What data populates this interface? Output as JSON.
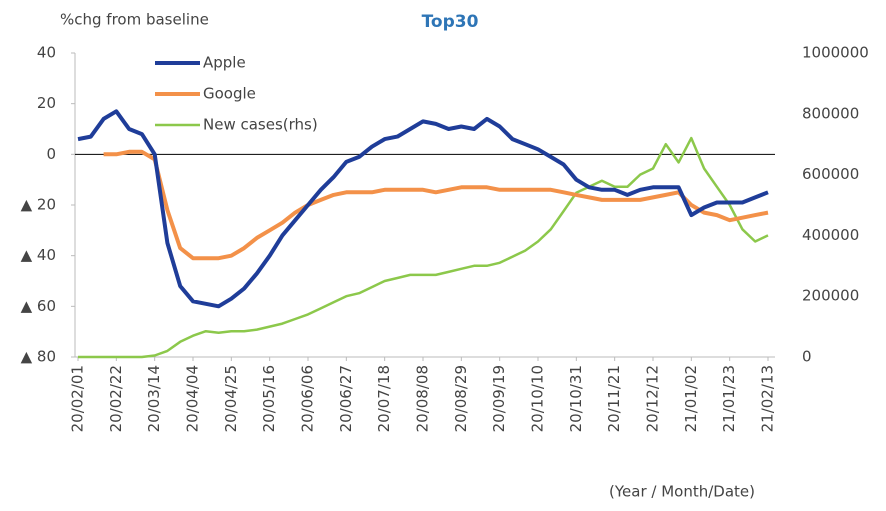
{
  "chart_data": {
    "type": "line",
    "title": "Top30",
    "y_label": "%chg from baseline",
    "x_label": "(Year / Month/Date)",
    "categories": [
      "20/02/01",
      null,
      null,
      "20/02/22",
      null,
      null,
      "20/03/14",
      null,
      null,
      "20/04/04",
      null,
      null,
      "20/04/25",
      null,
      null,
      "20/05/16",
      null,
      null,
      "20/06/06",
      null,
      null,
      "20/06/27",
      null,
      null,
      "20/07/18",
      null,
      null,
      "20/08/08",
      null,
      null,
      "20/08/29",
      null,
      null,
      "20/09/19",
      null,
      null,
      "20/10/10",
      null,
      null,
      "20/10/31",
      null,
      null,
      "20/11/21",
      null,
      null,
      "20/12/12",
      null,
      null,
      "21/01/02",
      null,
      null,
      "21/01/23",
      null,
      null,
      "21/02/13"
    ],
    "series": [
      {
        "name": "Apple",
        "color": "#1f3d99",
        "values": [
          6,
          7,
          14,
          17,
          10,
          8,
          0,
          -35,
          -52,
          -58,
          -59,
          -60,
          -57,
          -53,
          -47,
          -40,
          -32,
          -26,
          -20,
          -14,
          -9,
          -3,
          -1,
          3,
          6,
          7,
          10,
          13,
          12,
          10,
          11,
          10,
          14,
          11,
          6,
          4,
          2,
          -1,
          -4,
          -10,
          -13,
          -14,
          -14,
          -16,
          -14,
          -13,
          -13,
          -13,
          -24,
          -21,
          -19,
          -19,
          -19,
          -17,
          -15
        ]
      },
      {
        "name": "Google",
        "color": "#f39149",
        "values": [
          null,
          null,
          0,
          0,
          1,
          1,
          -2,
          -22,
          -37,
          -41,
          -41,
          -41,
          -40,
          -37,
          -33,
          -30,
          -27,
          -23,
          -20,
          -18,
          -16,
          -15,
          -15,
          -15,
          -14,
          -14,
          -14,
          -14,
          -15,
          -14,
          -13,
          -13,
          -13,
          -14,
          -14,
          -14,
          -14,
          -14,
          -15,
          -16,
          -17,
          -18,
          -18,
          -18,
          -18,
          -17,
          -16,
          -15,
          -20,
          -23,
          -24,
          -26,
          -25,
          -24,
          -23
        ]
      },
      {
        "name": "New cases(rhs)",
        "color": "#8cc84b",
        "axis": "y2",
        "values": [
          0,
          0,
          0,
          0,
          0,
          0,
          5000,
          20000,
          50000,
          70000,
          85000,
          80000,
          85000,
          85000,
          90000,
          100000,
          110000,
          125000,
          140000,
          160000,
          180000,
          200000,
          210000,
          230000,
          250000,
          260000,
          270000,
          270000,
          270000,
          280000,
          290000,
          300000,
          300000,
          310000,
          330000,
          350000,
          380000,
          420000,
          480000,
          540000,
          560000,
          580000,
          560000,
          560000,
          600000,
          620000,
          700000,
          640000,
          720000,
          620000,
          560000,
          500000,
          420000,
          380000,
          400000
        ]
      }
    ],
    "ylim": [
      -80,
      40
    ],
    "yticks": [
      {
        "value": -80,
        "label": "▲ 80"
      },
      {
        "value": -60,
        "label": "▲ 60"
      },
      {
        "value": -40,
        "label": "▲ 40"
      },
      {
        "value": -20,
        "label": "▲ 20"
      },
      0,
      20,
      40
    ],
    "y2lim": [
      0,
      1000000
    ],
    "y2ticks": [
      0,
      200000,
      400000,
      600000,
      800000,
      1000000
    ],
    "legend": "top-left"
  }
}
